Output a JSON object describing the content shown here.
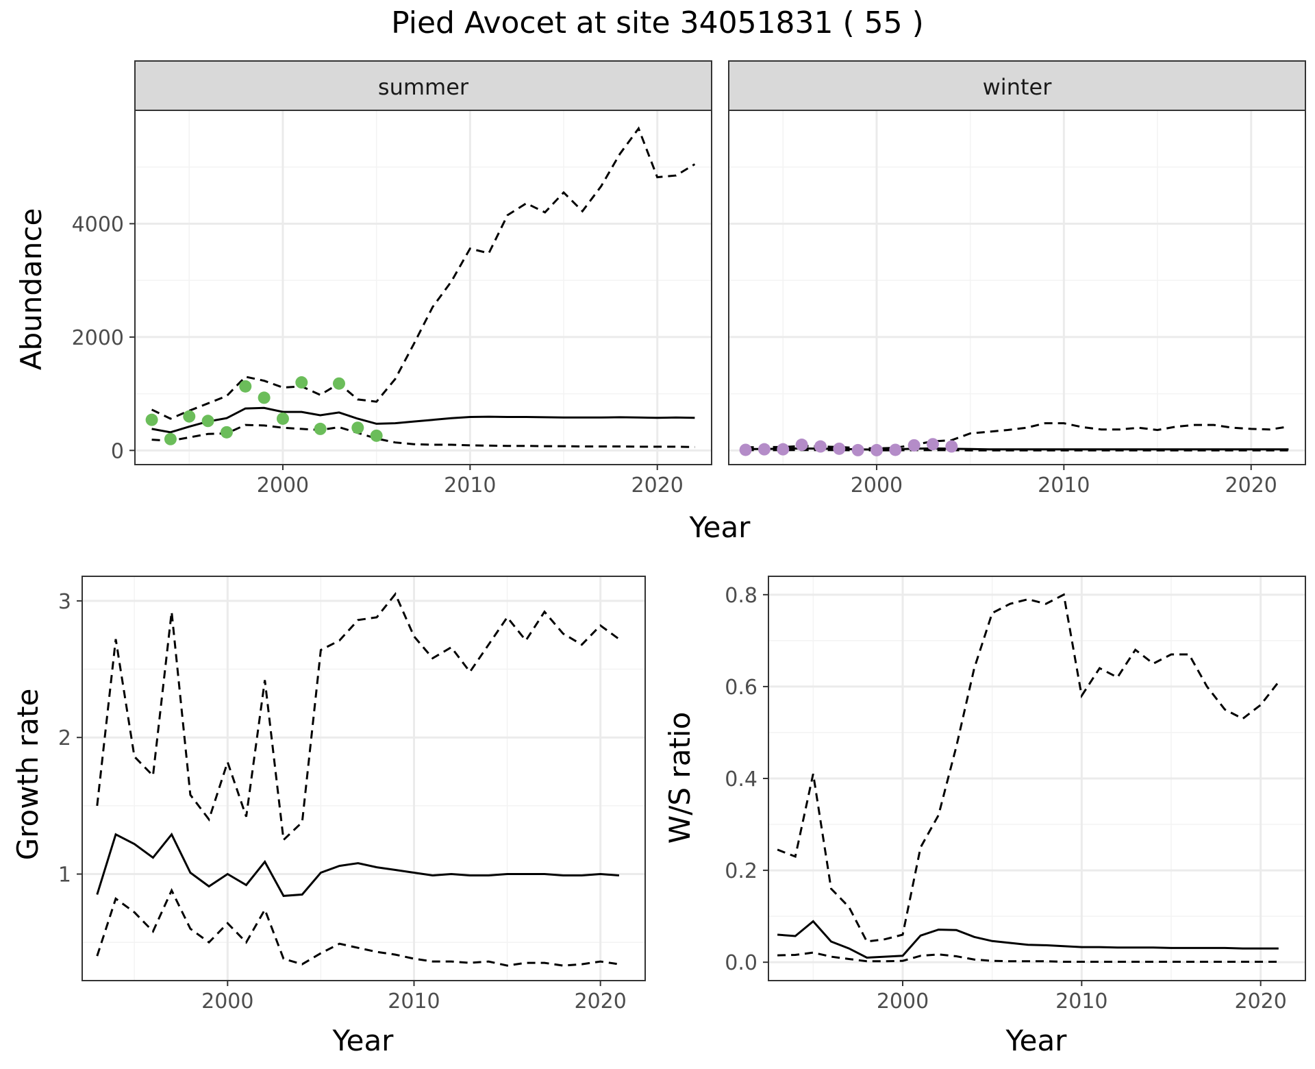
{
  "figure": {
    "title": "Pied Avocet at site 34051831 ( 55 )",
    "colors": {
      "summer_points": "#6bbd5a",
      "winter_points": "#b48cc8",
      "strip_fill": "#d9d9d9",
      "line": "#000000",
      "grid_major": "#ebebeb",
      "grid_minor": "#f3f3f3"
    }
  },
  "chart_data": [
    {
      "type": "line",
      "panel": "abundance",
      "facets": [
        "summer",
        "winter"
      ],
      "xlabel": "Year",
      "ylabel": "Abundance",
      "xlim": [
        1992.1,
        2022.9
      ],
      "ylim": [
        -250,
        6000
      ],
      "xticks": [
        2000,
        2010,
        2020
      ],
      "yticks": [
        0,
        2000,
        4000
      ],
      "grid": true,
      "series": {
        "summer": {
          "observed": {
            "x": [
              1993,
              1994,
              1995,
              1996,
              1997,
              1998,
              1999,
              2000,
              2001,
              2002,
              2003,
              2004,
              2005
            ],
            "y": [
              540,
              200,
              600,
              520,
              320,
              1130,
              930,
              560,
              1200,
              380,
              1180,
              400,
              260
            ]
          },
          "mean": {
            "x": [
              1993,
              1994,
              1995,
              1996,
              1997,
              1998,
              1999,
              2000,
              2001,
              2002,
              2003,
              2004,
              2005,
              2006,
              2007,
              2008,
              2009,
              2010,
              2011,
              2012,
              2013,
              2014,
              2015,
              2016,
              2017,
              2018,
              2019,
              2020,
              2021,
              2022
            ],
            "y": [
              380,
              320,
              420,
              510,
              570,
              740,
              750,
              680,
              680,
              620,
              670,
              560,
              470,
              480,
              510,
              540,
              570,
              590,
              595,
              590,
              590,
              585,
              580,
              580,
              580,
              585,
              580,
              575,
              580,
              575
            ]
          },
          "upper": {
            "x": [
              1993,
              1994,
              1995,
              1996,
              1997,
              1998,
              1999,
              2000,
              2001,
              2002,
              2003,
              2004,
              2005,
              2006,
              2007,
              2008,
              2009,
              2010,
              2011,
              2012,
              2013,
              2014,
              2015,
              2016,
              2017,
              2018,
              2019,
              2020,
              2021,
              2022
            ],
            "y": [
              720,
              560,
              700,
              830,
              960,
              1300,
              1230,
              1110,
              1130,
              980,
              1180,
              900,
              860,
              1260,
              1880,
              2530,
              2980,
              3560,
              3480,
              4150,
              4360,
              4200,
              4550,
              4220,
              4660,
              5230,
              5680,
              4820,
              4850,
              5050
            ]
          },
          "lower": {
            "x": [
              1993,
              1994,
              1995,
              1996,
              1997,
              1998,
              1999,
              2000,
              2001,
              2002,
              2003,
              2004,
              2005,
              2006,
              2007,
              2008,
              2009,
              2010,
              2011,
              2012,
              2013,
              2014,
              2015,
              2016,
              2017,
              2018,
              2019,
              2020,
              2021,
              2022
            ],
            "y": [
              190,
              170,
              230,
              290,
              300,
              450,
              440,
              400,
              380,
              360,
              410,
              310,
              210,
              140,
              110,
              100,
              100,
              90,
              85,
              80,
              80,
              75,
              75,
              70,
              70,
              70,
              65,
              65,
              65,
              60
            ]
          }
        },
        "winter": {
          "observed": {
            "x": [
              1993,
              1994,
              1995,
              1996,
              1997,
              1998,
              1999,
              2000,
              2001,
              2002,
              2003,
              2004
            ],
            "y": [
              10,
              20,
              20,
              100,
              70,
              30,
              5,
              5,
              10,
              90,
              110,
              70
            ]
          },
          "mean": {
            "x": [
              1993,
              1994,
              1995,
              1996,
              1997,
              1998,
              1999,
              2000,
              2001,
              2002,
              2003,
              2004,
              2005,
              2006,
              2007,
              2008,
              2009,
              2010,
              2011,
              2012,
              2013,
              2014,
              2015,
              2016,
              2017,
              2018,
              2019,
              2020,
              2021,
              2022
            ],
            "y": [
              25,
              25,
              30,
              35,
              32,
              28,
              20,
              15,
              20,
              30,
              35,
              30,
              25,
              20,
              20,
              20,
              20,
              20,
              20,
              20,
              20,
              20,
              20,
              20,
              20,
              20,
              20,
              20,
              20,
              20
            ]
          },
          "upper": {
            "x": [
              1993,
              1994,
              1995,
              1996,
              1997,
              1998,
              1999,
              2000,
              2001,
              2002,
              2003,
              2004,
              2005,
              2006,
              2007,
              2008,
              2009,
              2010,
              2011,
              2012,
              2013,
              2014,
              2015,
              2016,
              2017,
              2018,
              2019,
              2020,
              2021,
              2022
            ],
            "y": [
              55,
              60,
              60,
              80,
              70,
              60,
              45,
              35,
              45,
              100,
              160,
              180,
              300,
              330,
              360,
              400,
              480,
              480,
              410,
              370,
              370,
              400,
              360,
              420,
              450,
              450,
              400,
              380,
              370,
              420
            ]
          },
          "lower": {
            "x": [
              1993,
              1994,
              1995,
              1996,
              1997,
              1998,
              1999,
              2000,
              2001,
              2002,
              2003,
              2004,
              2005,
              2006,
              2007,
              2008,
              2009,
              2010,
              2011,
              2012,
              2013,
              2014,
              2015,
              2016,
              2017,
              2018,
              2019,
              2020,
              2021,
              2022
            ],
            "y": [
              5,
              5,
              5,
              8,
              7,
              5,
              3,
              2,
              3,
              5,
              5,
              5,
              2,
              1,
              1,
              1,
              1,
              1,
              1,
              1,
              1,
              1,
              1,
              1,
              1,
              1,
              1,
              1,
              1,
              1
            ]
          }
        }
      }
    },
    {
      "type": "line",
      "panel": "growth",
      "xlabel": "Year",
      "ylabel": "Growth rate",
      "xlim": [
        1992.2,
        2022.4
      ],
      "ylim": [
        0.22,
        3.18
      ],
      "xticks": [
        2000,
        2010,
        2020
      ],
      "yticks": [
        1,
        2,
        3
      ],
      "grid": true,
      "series": {
        "mean": {
          "x": [
            1993,
            1994,
            1995,
            1996,
            1997,
            1998,
            1999,
            2000,
            2001,
            2002,
            2003,
            2004,
            2005,
            2006,
            2007,
            2008,
            2009,
            2010,
            2011,
            2012,
            2013,
            2014,
            2015,
            2016,
            2017,
            2018,
            2019,
            2020,
            2021
          ],
          "y": [
            0.85,
            1.29,
            1.22,
            1.12,
            1.29,
            1.01,
            0.91,
            1.0,
            0.92,
            1.09,
            0.84,
            0.85,
            1.01,
            1.06,
            1.08,
            1.05,
            1.03,
            1.01,
            0.99,
            1.0,
            0.99,
            0.99,
            1.0,
            1.0,
            1.0,
            0.99,
            0.99,
            1.0,
            0.99
          ]
        },
        "upper": {
          "x": [
            1993,
            1994,
            1995,
            1996,
            1997,
            1998,
            1999,
            2000,
            2001,
            2002,
            2003,
            2004,
            2005,
            2006,
            2007,
            2008,
            2009,
            2010,
            2011,
            2012,
            2013,
            2014,
            2015,
            2016,
            2017,
            2018,
            2019,
            2020,
            2021
          ],
          "y": [
            1.5,
            2.72,
            1.86,
            1.72,
            2.92,
            1.58,
            1.4,
            1.82,
            1.42,
            2.42,
            1.25,
            1.38,
            2.64,
            2.71,
            2.86,
            2.88,
            3.05,
            2.74,
            2.58,
            2.66,
            2.48,
            2.68,
            2.88,
            2.71,
            2.92,
            2.76,
            2.68,
            2.82,
            2.72
          ]
        },
        "lower": {
          "x": [
            1993,
            1994,
            1995,
            1996,
            1997,
            1998,
            1999,
            2000,
            2001,
            2002,
            2003,
            2004,
            2005,
            2006,
            2007,
            2008,
            2009,
            2010,
            2011,
            2012,
            2013,
            2014,
            2015,
            2016,
            2017,
            2018,
            2019,
            2020,
            2021
          ],
          "y": [
            0.4,
            0.82,
            0.72,
            0.58,
            0.88,
            0.6,
            0.5,
            0.64,
            0.5,
            0.74,
            0.38,
            0.34,
            0.42,
            0.49,
            0.46,
            0.43,
            0.41,
            0.38,
            0.36,
            0.36,
            0.35,
            0.36,
            0.33,
            0.35,
            0.35,
            0.33,
            0.34,
            0.36,
            0.34
          ]
        }
      }
    },
    {
      "type": "line",
      "panel": "ws_ratio",
      "xlabel": "Year",
      "ylabel": "W/S ratio",
      "xlim": [
        1992.5,
        2022.5
      ],
      "ylim": [
        -0.04,
        0.84
      ],
      "xticks": [
        2000,
        2010,
        2020
      ],
      "yticks": [
        0.0,
        0.2,
        0.4,
        0.6,
        0.8
      ],
      "ytick_labels": [
        "0.0",
        "0.2",
        "0.4",
        "0.6",
        "0.8"
      ],
      "grid": true,
      "series": {
        "mean": {
          "x": [
            1993,
            1994,
            1995,
            1996,
            1997,
            1998,
            1999,
            2000,
            2001,
            2002,
            2003,
            2004,
            2005,
            2006,
            2007,
            2008,
            2009,
            2010,
            2011,
            2012,
            2013,
            2014,
            2015,
            2016,
            2017,
            2018,
            2019,
            2020,
            2021
          ],
          "y": [
            0.06,
            0.057,
            0.089,
            0.045,
            0.03,
            0.01,
            0.012,
            0.014,
            0.058,
            0.071,
            0.07,
            0.055,
            0.046,
            0.042,
            0.038,
            0.037,
            0.035,
            0.033,
            0.033,
            0.032,
            0.032,
            0.032,
            0.031,
            0.031,
            0.031,
            0.031,
            0.03,
            0.03,
            0.03
          ]
        },
        "upper": {
          "x": [
            1993,
            1994,
            1995,
            1996,
            1997,
            1998,
            1999,
            2000,
            2001,
            2002,
            2003,
            2004,
            2005,
            2006,
            2007,
            2008,
            2009,
            2010,
            2011,
            2012,
            2013,
            2014,
            2015,
            2016,
            2017,
            2018,
            2019,
            2020,
            2021
          ],
          "y": [
            0.245,
            0.23,
            0.41,
            0.16,
            0.12,
            0.045,
            0.05,
            0.06,
            0.25,
            0.32,
            0.47,
            0.64,
            0.76,
            0.78,
            0.79,
            0.78,
            0.8,
            0.58,
            0.64,
            0.62,
            0.68,
            0.65,
            0.67,
            0.67,
            0.6,
            0.55,
            0.53,
            0.56,
            0.61
          ]
        },
        "lower": {
          "x": [
            1993,
            1994,
            1995,
            1996,
            1997,
            1998,
            1999,
            2000,
            2001,
            2002,
            2003,
            2004,
            2005,
            2006,
            2007,
            2008,
            2009,
            2010,
            2011,
            2012,
            2013,
            2014,
            2015,
            2016,
            2017,
            2018,
            2019,
            2020,
            2021
          ],
          "y": [
            0.015,
            0.016,
            0.021,
            0.012,
            0.007,
            0.002,
            0.002,
            0.003,
            0.014,
            0.017,
            0.013,
            0.006,
            0.003,
            0.002,
            0.002,
            0.002,
            0.001,
            0.001,
            0.001,
            0.001,
            0.001,
            0.001,
            0.001,
            0.001,
            0.001,
            0.001,
            0.001,
            0.001,
            0.001
          ]
        }
      }
    }
  ]
}
